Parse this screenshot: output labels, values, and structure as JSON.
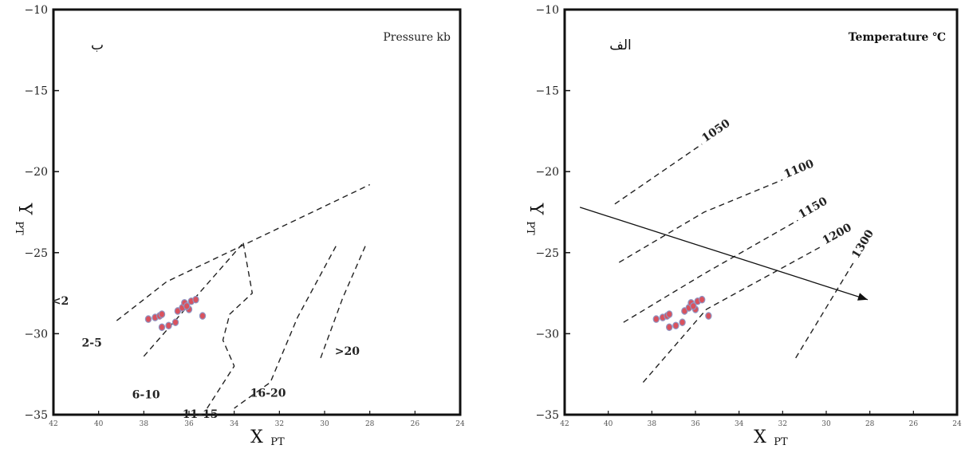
{
  "chart_data": [
    {
      "type": "scatter",
      "panel_tag": "ب",
      "title": "Pressure kb",
      "xlabel": "X",
      "xlabel_sub": "PT",
      "ylabel": "Y",
      "ylabel_sub": "PT",
      "xlim": [
        42,
        24
      ],
      "ylim": [
        -35,
        -10
      ],
      "x_ticks": [
        "42",
        "40",
        "38",
        "36",
        "34",
        "32",
        "30",
        "28",
        "26",
        "24"
      ],
      "y_ticks": [
        "-10",
        "-15",
        "-20",
        "-25",
        "-30",
        "-35"
      ],
      "points": [
        {
          "x": 37.8,
          "y": -29.1
        },
        {
          "x": 37.5,
          "y": -29.0
        },
        {
          "x": 37.3,
          "y": -28.9
        },
        {
          "x": 37.2,
          "y": -28.8
        },
        {
          "x": 37.2,
          "y": -29.6
        },
        {
          "x": 36.9,
          "y": -29.5
        },
        {
          "x": 36.6,
          "y": -29.3
        },
        {
          "x": 36.5,
          "y": -28.6
        },
        {
          "x": 36.3,
          "y": -28.4
        },
        {
          "x": 36.2,
          "y": -28.1
        },
        {
          "x": 36.0,
          "y": -28.5
        },
        {
          "x": 35.9,
          "y": -28.0
        },
        {
          "x": 35.7,
          "y": -27.9
        },
        {
          "x": 35.4,
          "y": -28.9
        },
        {
          "x": 36.1,
          "y": -28.3
        }
      ],
      "boundaries": [
        {
          "points": [
            [
              39.2,
              -29.2
            ],
            [
              37.0,
              -26.8
            ],
            [
              28.0,
              -20.8
            ]
          ]
        },
        {
          "points": [
            [
              38.0,
              -31.4
            ],
            [
              33.6,
              -24.4
            ]
          ]
        },
        {
          "points": [
            [
              33.6,
              -24.4
            ],
            [
              33.2,
              -27.5
            ],
            [
              34.2,
              -28.8
            ],
            [
              34.5,
              -30.4
            ],
            [
              34.0,
              -32.0
            ],
            [
              35.2,
              -34.6
            ]
          ]
        },
        {
          "points": [
            [
              29.5,
              -24.6
            ],
            [
              31.2,
              -29.0
            ],
            [
              32.4,
              -33.0
            ],
            [
              34.0,
              -34.6
            ]
          ]
        },
        {
          "points": [
            [
              28.2,
              -24.6
            ],
            [
              29.2,
              -27.8
            ],
            [
              30.2,
              -31.6
            ]
          ]
        }
      ],
      "region_labels": [
        {
          "text": "<2",
          "x": 41.7,
          "y": -28.2
        },
        {
          "text": "2-5",
          "x": 40.3,
          "y": -30.8
        },
        {
          "text": "6-10",
          "x": 37.9,
          "y": -34.0
        },
        {
          "text": "11-15",
          "x": 35.5,
          "y": -35.2
        },
        {
          "text": "16-20",
          "x": 32.5,
          "y": -33.9
        },
        {
          "text": ">20",
          "x": 29.0,
          "y": -31.3
        }
      ]
    },
    {
      "type": "scatter",
      "panel_tag": "الف",
      "title": "Temperature ℃",
      "xlabel": "X",
      "xlabel_sub": "PT",
      "ylabel": "Y",
      "ylabel_sub": "PT",
      "xlim": [
        42,
        24
      ],
      "ylim": [
        -35,
        -10
      ],
      "x_ticks": [
        "42",
        "40",
        "38",
        "36",
        "34",
        "32",
        "30",
        "28",
        "26",
        "24"
      ],
      "y_ticks": [
        "-10",
        "-15",
        "-20",
        "-25",
        "-30",
        "-35"
      ],
      "points": [
        {
          "x": 37.8,
          "y": -29.1
        },
        {
          "x": 37.5,
          "y": -29.0
        },
        {
          "x": 37.3,
          "y": -28.9
        },
        {
          "x": 37.2,
          "y": -28.8
        },
        {
          "x": 37.2,
          "y": -29.6
        },
        {
          "x": 36.9,
          "y": -29.5
        },
        {
          "x": 36.6,
          "y": -29.3
        },
        {
          "x": 36.5,
          "y": -28.6
        },
        {
          "x": 36.3,
          "y": -28.4
        },
        {
          "x": 36.2,
          "y": -28.1
        },
        {
          "x": 36.0,
          "y": -28.5
        },
        {
          "x": 35.9,
          "y": -28.0
        },
        {
          "x": 35.7,
          "y": -27.9
        },
        {
          "x": 35.4,
          "y": -28.9
        },
        {
          "x": 36.1,
          "y": -28.3
        }
      ],
      "isotherms": [
        {
          "label": "1050",
          "points": [
            [
              39.7,
              -22.0
            ],
            [
              35.7,
              -18.3
            ]
          ]
        },
        {
          "label": "1100",
          "points": [
            [
              39.5,
              -25.6
            ],
            [
              35.6,
              -22.5
            ],
            [
              32.0,
              -20.5
            ]
          ]
        },
        {
          "label": "1150",
          "points": [
            [
              39.3,
              -29.3
            ],
            [
              35.6,
              -26.3
            ],
            [
              31.3,
              -23.0
            ]
          ]
        },
        {
          "label": "1200",
          "points": [
            [
              38.4,
              -33.0
            ],
            [
              35.5,
              -28.5
            ],
            [
              30.2,
              -24.6
            ]
          ]
        },
        {
          "label": "1300",
          "points": [
            [
              31.4,
              -31.5
            ],
            [
              28.7,
              -25.5
            ]
          ]
        }
      ],
      "arrow": {
        "from": [
          41.3,
          -22.2
        ],
        "to": [
          28.1,
          -27.9
        ]
      }
    }
  ]
}
